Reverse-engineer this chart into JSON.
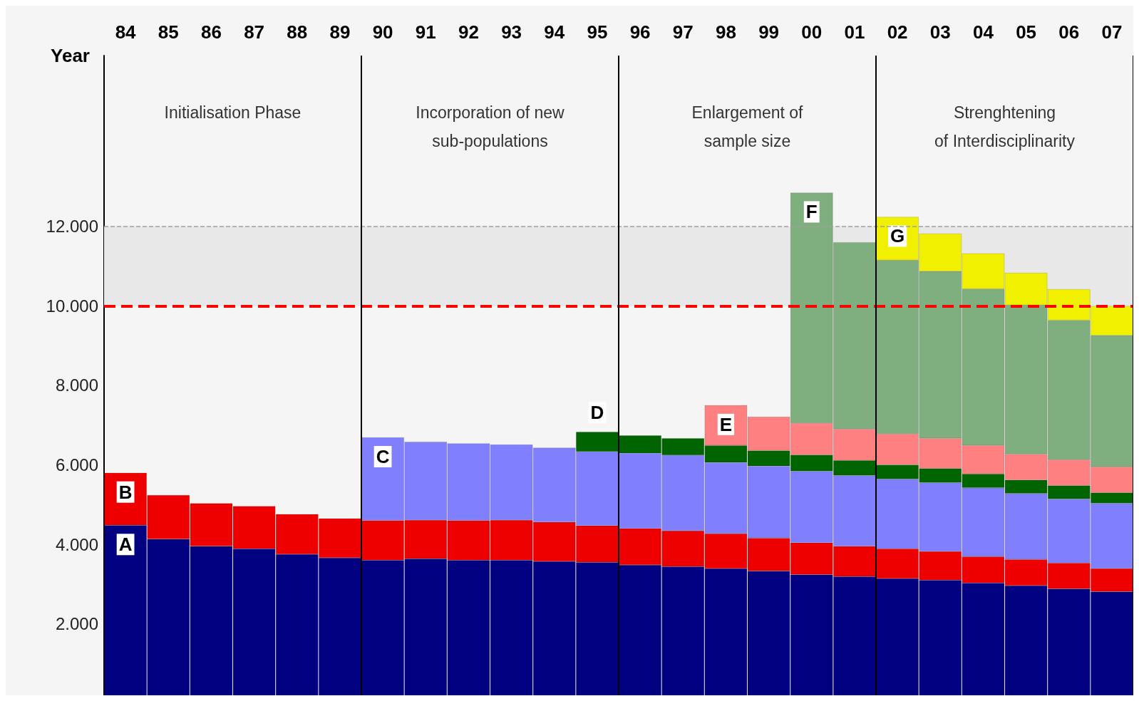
{
  "chart_data": {
    "type": "bar",
    "stacked": true,
    "xlabel": "Year",
    "categories": [
      "84",
      "85",
      "86",
      "87",
      "88",
      "89",
      "90",
      "91",
      "92",
      "93",
      "94",
      "95",
      "96",
      "97",
      "98",
      "99",
      "00",
      "01",
      "02",
      "03",
      "04",
      "05",
      "06",
      "07"
    ],
    "series": [
      {
        "name": "A",
        "color": "#000080",
        "values": [
          4480,
          4130,
          3950,
          3890,
          3750,
          3660,
          3600,
          3640,
          3600,
          3600,
          3570,
          3550,
          3480,
          3440,
          3390,
          3330,
          3240,
          3190,
          3140,
          3100,
          3030,
          2960,
          2880,
          2810
        ]
      },
      {
        "name": "B",
        "color": "#ee0000",
        "values": [
          1320,
          1110,
          1080,
          1070,
          1010,
          990,
          1000,
          970,
          1000,
          1010,
          990,
          920,
          920,
          900,
          880,
          830,
          800,
          760,
          750,
          720,
          660,
          660,
          650,
          580
        ]
      },
      {
        "name": "C",
        "color": "#8080ff",
        "values": [
          null,
          null,
          null,
          null,
          null,
          null,
          2090,
          1970,
          1940,
          1900,
          1870,
          1860,
          1890,
          1900,
          1790,
          1810,
          1800,
          1780,
          1750,
          1730,
          1730,
          1660,
          1610,
          1640
        ]
      },
      {
        "name": "D",
        "color": "#006400",
        "values": [
          null,
          null,
          null,
          null,
          null,
          null,
          null,
          null,
          null,
          null,
          null,
          500,
          450,
          430,
          430,
          390,
          410,
          380,
          360,
          360,
          350,
          340,
          340,
          270
        ]
      },
      {
        "name": "E",
        "color": "#ff8080",
        "values": [
          null,
          null,
          null,
          null,
          null,
          null,
          null,
          null,
          null,
          null,
          null,
          null,
          null,
          null,
          1010,
          850,
          800,
          790,
          780,
          760,
          720,
          650,
          650,
          650
        ]
      },
      {
        "name": "F",
        "color": "#7fae7f",
        "values": [
          null,
          null,
          null,
          null,
          null,
          null,
          null,
          null,
          null,
          null,
          null,
          null,
          null,
          null,
          null,
          null,
          5800,
          4700,
          4370,
          4200,
          3940,
          3750,
          3510,
          3310
        ]
      },
      {
        "name": "G",
        "color": "#f0f000",
        "values": [
          null,
          null,
          null,
          null,
          null,
          null,
          null,
          null,
          null,
          null,
          null,
          null,
          null,
          null,
          null,
          null,
          null,
          null,
          1090,
          950,
          890,
          810,
          780,
          740
        ]
      }
    ],
    "ylim": [
      200,
      16300
    ],
    "yticks": [
      {
        "value": 2000,
        "label": "2.000"
      },
      {
        "value": 4000,
        "label": "4.000"
      },
      {
        "value": 6000,
        "label": "6.000"
      },
      {
        "value": 8000,
        "label": "8.000"
      },
      {
        "value": 10000,
        "label": "10.000"
      },
      {
        "value": 12000,
        "label": "12.000"
      }
    ],
    "grid": false,
    "ref_lines": [
      {
        "axis": "y",
        "value": 10000,
        "color": "#ff0000",
        "line_style": "dashed"
      },
      {
        "axis": "y",
        "value": 12000,
        "color": "#a0a0a0",
        "line_style": "dashed"
      }
    ],
    "bands": [
      {
        "axis": "y",
        "from": 10000,
        "to": 12000,
        "color": "#e8e8e8"
      }
    ],
    "annotations": [
      "Initialisation Phase",
      "Incorporation of new\nsub-populations",
      "Enlargement of\nsample size",
      "Strenghtening\nof Interdisciplinarity"
    ]
  }
}
